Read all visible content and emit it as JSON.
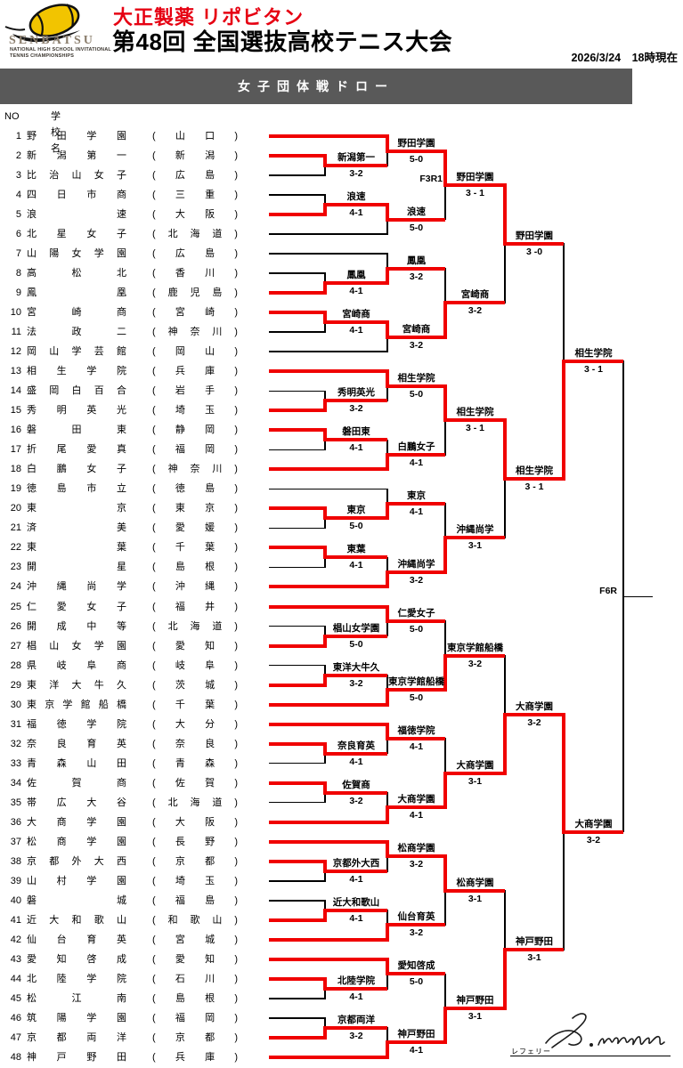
{
  "header": {
    "logo": {
      "ball_color": "#F2C400",
      "wordmark": "SENBATSU",
      "subtitle1": "NATIONAL HIGH SCHOOL INVITATIONAL",
      "subtitle2": "TENNIS CHAMPIONSHIPS"
    },
    "sponsor": "大正製薬 リポビタン",
    "title": "第48回 全国選抜高校テニス大会",
    "datetime": "2026/3/24　18時現在"
  },
  "banner": {
    "label": "女子団体戦ドロー"
  },
  "list_header": {
    "no": "NO",
    "school": "学校名"
  },
  "colors": {
    "win_line": "#F00000",
    "line": "#000000",
    "banner_bg": "#595959",
    "sponsor_red": "#E60012"
  },
  "teams": [
    {
      "no": 1,
      "name": "野田学園",
      "pref": "山口",
      "advanced": true
    },
    {
      "no": 2,
      "name": "新潟第一",
      "pref": "新潟",
      "advanced": true
    },
    {
      "no": 3,
      "name": "比治山女子",
      "pref": "広島",
      "advanced": false
    },
    {
      "no": 4,
      "name": "四日市商",
      "pref": "三重",
      "advanced": false
    },
    {
      "no": 5,
      "name": "浪速",
      "pref": "大阪",
      "advanced": true
    },
    {
      "no": 6,
      "name": "北星女子",
      "pref": "北海道",
      "advanced": false
    },
    {
      "no": 7,
      "name": "山陽女学園",
      "pref": "広島",
      "advanced": false
    },
    {
      "no": 8,
      "name": "高松北",
      "pref": "香川",
      "advanced": false
    },
    {
      "no": 9,
      "name": "鳳凰",
      "pref": "鹿児島",
      "advanced": true
    },
    {
      "no": 10,
      "name": "宮崎商",
      "pref": "宮崎",
      "advanced": true
    },
    {
      "no": 11,
      "name": "法政二",
      "pref": "神奈川",
      "advanced": false
    },
    {
      "no": 12,
      "name": "岡山学芸館",
      "pref": "岡山",
      "advanced": false
    },
    {
      "no": 13,
      "name": "相生学院",
      "pref": "兵庫",
      "advanced": true
    },
    {
      "no": 14,
      "name": "盛岡白百合",
      "pref": "岩手",
      "advanced": false
    },
    {
      "no": 15,
      "name": "秀明英光",
      "pref": "埼玉",
      "advanced": true
    },
    {
      "no": 16,
      "name": "磐田東",
      "pref": "静岡",
      "advanced": true
    },
    {
      "no": 17,
      "name": "折尾愛真",
      "pref": "福岡",
      "advanced": false
    },
    {
      "no": 18,
      "name": "白鵬女子",
      "pref": "神奈川",
      "advanced": true
    },
    {
      "no": 19,
      "name": "徳島市立",
      "pref": "徳島",
      "advanced": false
    },
    {
      "no": 20,
      "name": "東京",
      "pref": "東京",
      "advanced": true
    },
    {
      "no": 21,
      "name": "済美",
      "pref": "愛媛",
      "advanced": false
    },
    {
      "no": 22,
      "name": "東葉",
      "pref": "千葉",
      "advanced": true
    },
    {
      "no": 23,
      "name": "開星",
      "pref": "島根",
      "advanced": false
    },
    {
      "no": 24,
      "name": "沖縄尚学",
      "pref": "沖縄",
      "advanced": true
    },
    {
      "no": 25,
      "name": "仁愛女子",
      "pref": "福井",
      "advanced": true
    },
    {
      "no": 26,
      "name": "開成中等",
      "pref": "北海道",
      "advanced": false
    },
    {
      "no": 27,
      "name": "椙山女学園",
      "pref": "愛知",
      "advanced": true
    },
    {
      "no": 28,
      "name": "県岐阜商",
      "pref": "岐阜",
      "advanced": false
    },
    {
      "no": 29,
      "name": "東洋大牛久",
      "pref": "茨城",
      "advanced": true
    },
    {
      "no": 30,
      "name": "東京学館船橋",
      "pref": "千葉",
      "advanced": true
    },
    {
      "no": 31,
      "name": "福徳学院",
      "pref": "大分",
      "advanced": true
    },
    {
      "no": 32,
      "name": "奈良育英",
      "pref": "奈良",
      "advanced": true
    },
    {
      "no": 33,
      "name": "青森山田",
      "pref": "青森",
      "advanced": false
    },
    {
      "no": 34,
      "name": "佐賀商",
      "pref": "佐賀",
      "advanced": true
    },
    {
      "no": 35,
      "name": "帯広大谷",
      "pref": "北海道",
      "advanced": false
    },
    {
      "no": 36,
      "name": "大商学園",
      "pref": "大阪",
      "advanced": true
    },
    {
      "no": 37,
      "name": "松商学園",
      "pref": "長野",
      "advanced": true
    },
    {
      "no": 38,
      "name": "京都外大西",
      "pref": "京都",
      "advanced": true
    },
    {
      "no": 39,
      "name": "山村学園",
      "pref": "埼玉",
      "advanced": false
    },
    {
      "no": 40,
      "name": "磐城",
      "pref": "福島",
      "advanced": false
    },
    {
      "no": 41,
      "name": "近大和歌山",
      "pref": "和歌山",
      "advanced": true
    },
    {
      "no": 42,
      "name": "仙台育英",
      "pref": "宮城",
      "advanced": true
    },
    {
      "no": 43,
      "name": "愛知啓成",
      "pref": "愛知",
      "advanced": true
    },
    {
      "no": 44,
      "name": "北陸学院",
      "pref": "石川",
      "advanced": true
    },
    {
      "no": 45,
      "name": "松江南",
      "pref": "島根",
      "advanced": false
    },
    {
      "no": 46,
      "name": "筑陽学園",
      "pref": "福岡",
      "advanced": false
    },
    {
      "no": 47,
      "name": "京都両洋",
      "pref": "京都",
      "advanced": true
    },
    {
      "no": 48,
      "name": "神戸野田",
      "pref": "兵庫",
      "advanced": true
    }
  ],
  "bracket": {
    "round3_label": "F3R1",
    "final_label": "F6R",
    "round1": [
      {
        "winner": "top",
        "name": "新潟第一",
        "score": "3-2"
      },
      {
        "winner": "bottom",
        "name": "浪速",
        "score": "4-1"
      },
      {
        "winner": "bottom",
        "name": "鳳凰",
        "score": "4-1"
      },
      {
        "winner": "top",
        "name": "宮崎商",
        "score": "4-1"
      },
      {
        "winner": "bottom",
        "name": "秀明英光",
        "score": "3-2"
      },
      {
        "winner": "top",
        "name": "磐田東",
        "score": "4-1"
      },
      {
        "winner": "top",
        "name": "東京",
        "score": "5-0"
      },
      {
        "winner": "top",
        "name": "東葉",
        "score": "4-1"
      },
      {
        "winner": "bottom",
        "name": "椙山女学園",
        "score": "5-0"
      },
      {
        "winner": "bottom",
        "name": "東洋大牛久",
        "score": "3-2"
      },
      {
        "winner": "top",
        "name": "奈良育英",
        "score": "4-1"
      },
      {
        "winner": "top",
        "name": "佐賀商",
        "score": "3-2"
      },
      {
        "winner": "top",
        "name": "京都外大西",
        "score": "4-1"
      },
      {
        "winner": "bottom",
        "name": "近大和歌山",
        "score": "4-1"
      },
      {
        "winner": "top",
        "name": "北陸学院",
        "score": "4-1"
      },
      {
        "winner": "bottom",
        "name": "京都両洋",
        "score": "3-2"
      }
    ],
    "round2": [
      {
        "winner": "top",
        "name": "野田学園",
        "score": "5-0"
      },
      {
        "winner": "top",
        "name": "浪速",
        "score": "5-0"
      },
      {
        "winner": "bottom",
        "name": "鳳凰",
        "score": "3-2"
      },
      {
        "winner": "top",
        "name": "宮崎商",
        "score": "3-2"
      },
      {
        "winner": "top",
        "name": "相生学院",
        "score": "5-0"
      },
      {
        "winner": "bottom",
        "name": "白鵬女子",
        "score": "4-1"
      },
      {
        "winner": "bottom",
        "name": "東京",
        "score": "4-1"
      },
      {
        "winner": "bottom",
        "name": "沖縄尚学",
        "score": "3-2"
      },
      {
        "winner": "top",
        "name": "仁愛女子",
        "score": "5-0"
      },
      {
        "winner": "bottom",
        "name": "東京学館船橋",
        "score": "5-0"
      },
      {
        "winner": "top",
        "name": "福徳学院",
        "score": "4-1"
      },
      {
        "winner": "bottom",
        "name": "大商学園",
        "score": "4-1"
      },
      {
        "winner": "top",
        "name": "松商学園",
        "score": "3-2"
      },
      {
        "winner": "bottom",
        "name": "仙台育英",
        "score": "3-2"
      },
      {
        "winner": "top",
        "name": "愛知啓成",
        "score": "5-0"
      },
      {
        "winner": "bottom",
        "name": "神戸野田",
        "score": "4-1"
      }
    ],
    "round3": [
      {
        "winner": "top",
        "name": "野田学園",
        "score": "3 - 1"
      },
      {
        "winner": "bottom",
        "name": "宮崎商",
        "score": "3-2"
      },
      {
        "winner": "top",
        "name": "相生学院",
        "score": "3 - 1"
      },
      {
        "winner": "bottom",
        "name": "沖縄尚学",
        "score": "3-1"
      },
      {
        "winner": "bottom",
        "name": "東京学館船橋",
        "score": "3-2"
      },
      {
        "winner": "bottom",
        "name": "大商学園",
        "score": "3-1"
      },
      {
        "winner": "top",
        "name": "松商学園",
        "score": "3-1"
      },
      {
        "winner": "bottom",
        "name": "神戸野田",
        "score": "3-1"
      }
    ],
    "quarterfinals": [
      {
        "winner": "top",
        "name": "野田学園",
        "score": "3 -0"
      },
      {
        "winner": "top",
        "name": "相生学院",
        "score": "3 - 1"
      },
      {
        "winner": "bottom",
        "name": "大商学園",
        "score": "3-2"
      },
      {
        "winner": "bottom",
        "name": "神戸野田",
        "score": "3-1"
      }
    ],
    "semifinals": [
      {
        "winner": "bottom",
        "name": "相生学院",
        "score": "3 - 1"
      },
      {
        "winner": "top",
        "name": "大商学園",
        "score": "3-2"
      }
    ],
    "final": {
      "played": false
    }
  },
  "referee": {
    "label": "レフェリー",
    "signature": "S. Monda"
  }
}
